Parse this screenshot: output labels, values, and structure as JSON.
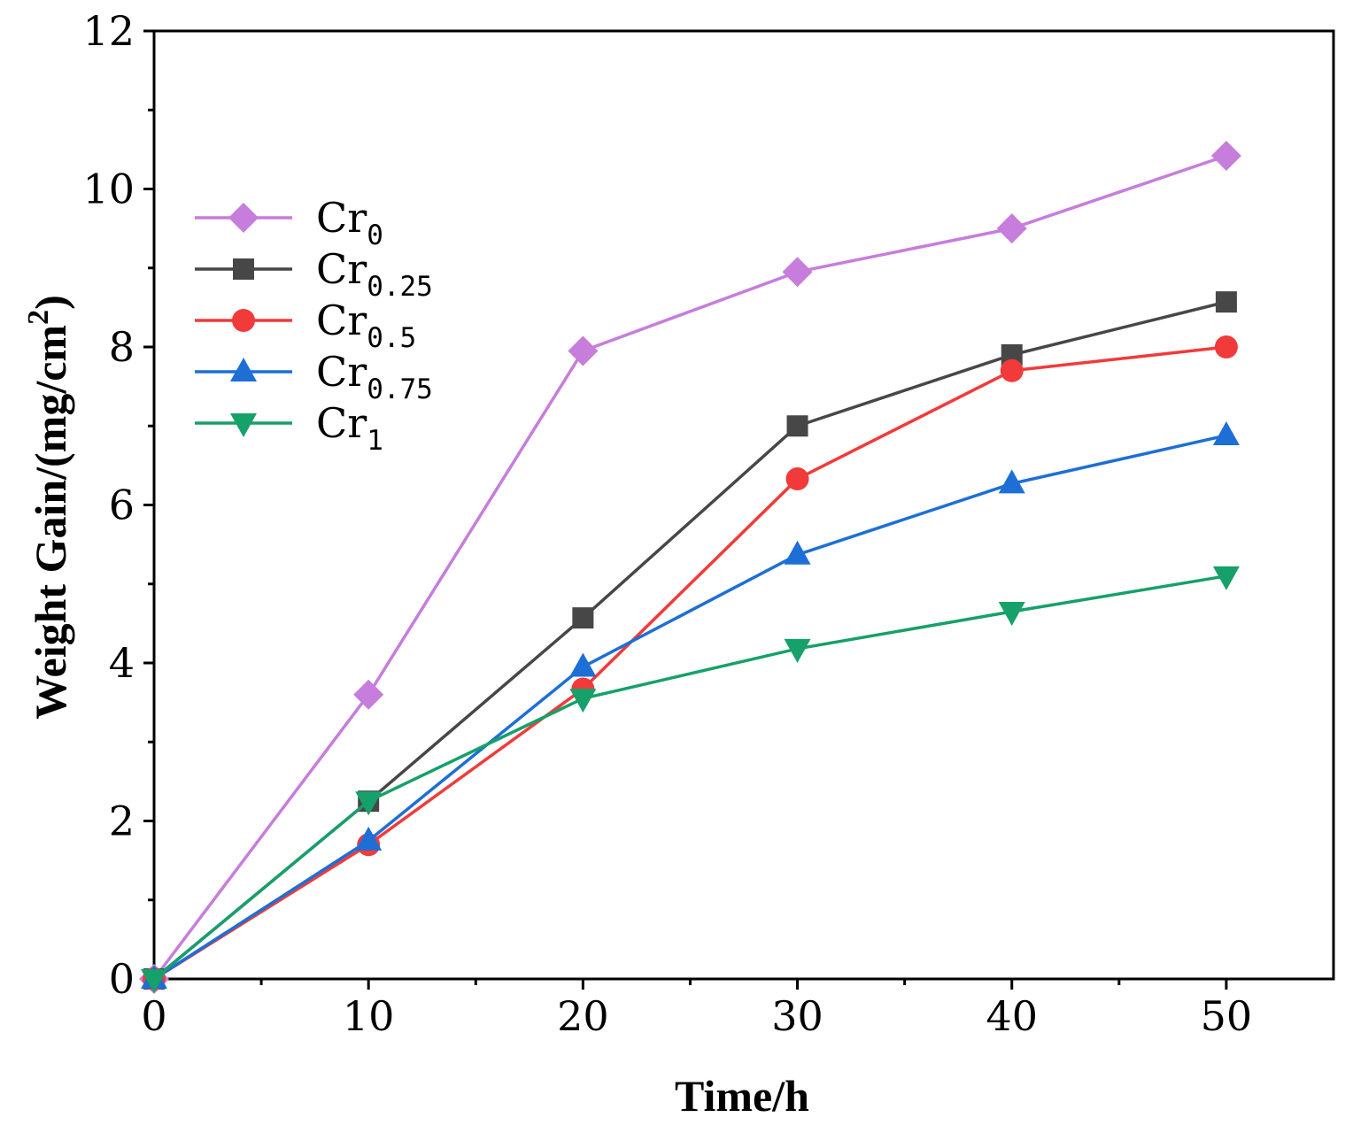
{
  "chart_data": {
    "type": "line",
    "title": "",
    "xlabel": "Time/h",
    "ylabel": "Weight Gain/(mg/cm2)",
    "ylabel_parts": {
      "main": "Weight Gain/(mg/cm",
      "sup": "2",
      "end": ")"
    },
    "xlim": [
      0,
      55
    ],
    "ylim": [
      0,
      12
    ],
    "x_ticks": [
      0,
      10,
      20,
      30,
      40,
      50
    ],
    "y_ticks": [
      0,
      2,
      4,
      6,
      8,
      10,
      12
    ],
    "grid": false,
    "legend_position": "upper-left",
    "x": [
      0,
      10,
      20,
      30,
      40,
      50
    ],
    "series": [
      {
        "name": "Cr0",
        "base": "Cr",
        "sub": "0",
        "marker": "diamond",
        "color": "#c77ddc",
        "values": [
          0,
          3.6,
          7.95,
          8.95,
          9.5,
          10.42
        ]
      },
      {
        "name": "Cr0.25",
        "base": "Cr",
        "sub": "0.25",
        "marker": "square",
        "color": "#474747",
        "values": [
          0,
          2.25,
          4.57,
          7.0,
          7.9,
          8.57
        ]
      },
      {
        "name": "Cr0.5",
        "base": "Cr",
        "sub": "0.5",
        "marker": "circle",
        "color": "#f23a3a",
        "values": [
          0,
          1.7,
          3.67,
          6.33,
          7.7,
          8.0
        ]
      },
      {
        "name": "Cr0.75",
        "base": "Cr",
        "sub": "0.75",
        "marker": "triangle-up",
        "color": "#1d6fd6",
        "values": [
          0,
          1.75,
          3.95,
          5.37,
          6.27,
          6.88
        ]
      },
      {
        "name": "Cr1",
        "base": "Cr",
        "sub": "1",
        "marker": "triangle-down",
        "color": "#16a06a",
        "values": [
          0,
          2.25,
          3.55,
          4.18,
          4.65,
          5.1
        ]
      }
    ]
  }
}
